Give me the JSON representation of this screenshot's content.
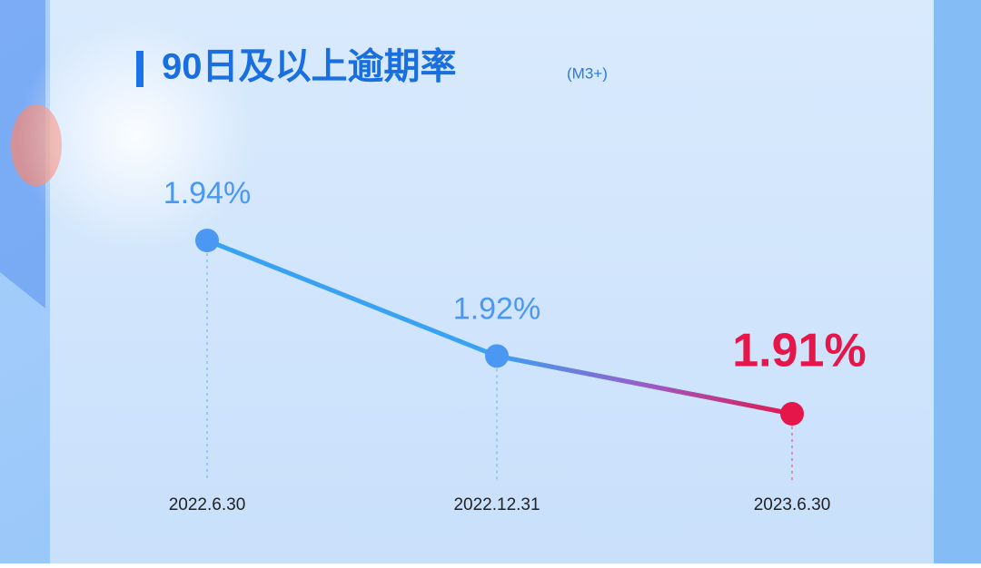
{
  "chart_data": {
    "type": "line",
    "title": "90日及以上逾期率",
    "subtitle": "(M3+)",
    "categories": [
      "2022.6.30",
      "2022.12.31",
      "2023.6.30"
    ],
    "values": [
      1.94,
      1.92,
      1.91
    ],
    "value_labels": [
      "1.94%",
      "1.92%",
      "1.91%"
    ],
    "colors": [
      "#4a98f2",
      "#4a98f2",
      "#e5164a"
    ],
    "line_color": "#3aa2f2"
  }
}
